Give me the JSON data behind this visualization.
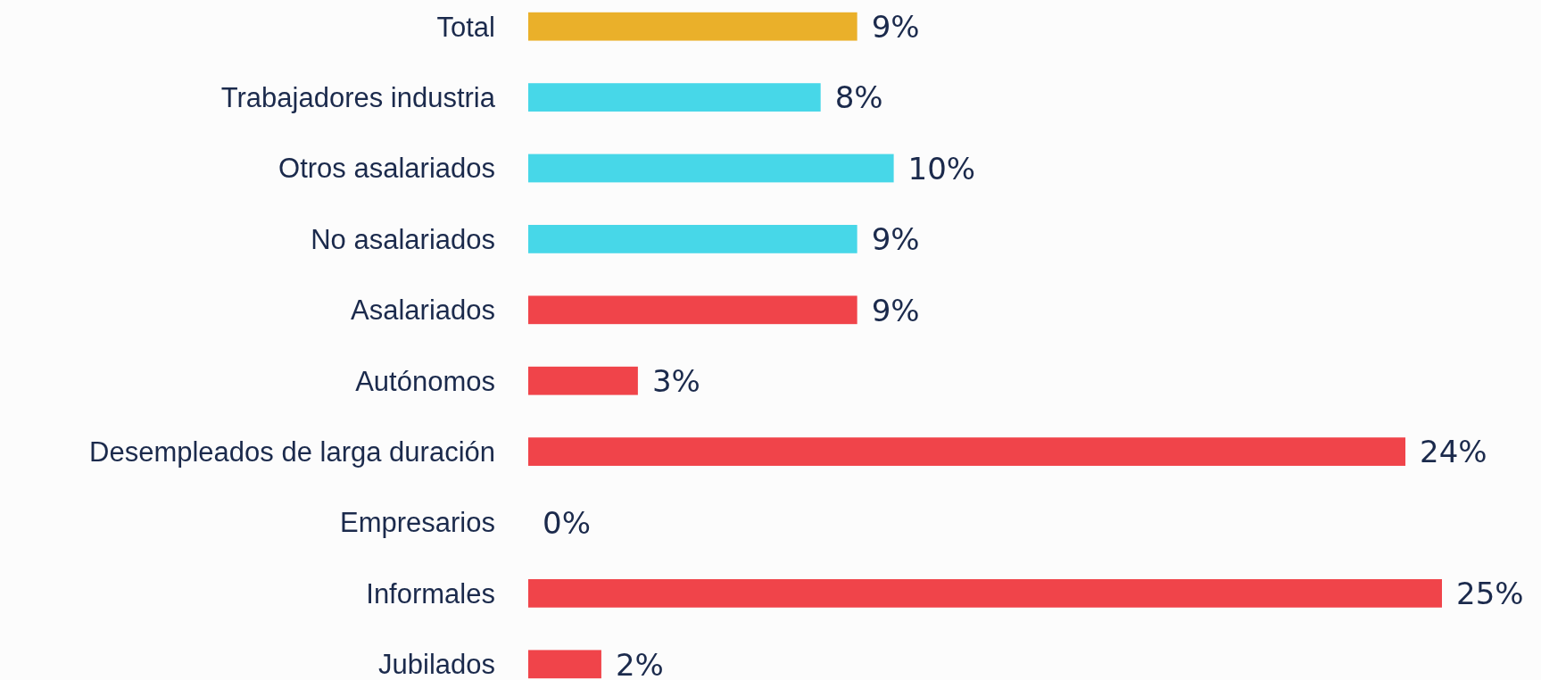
{
  "chart_data": {
    "type": "bar",
    "orientation": "horizontal",
    "categories": [
      "Total",
      "Trabajadores industria",
      "Otros asalariados",
      "No asalariados",
      "Asalariados",
      "Autónomos",
      "Desempleados de larga duración",
      "Empresarios",
      "Informales",
      "Jubilados"
    ],
    "values": [
      9,
      8,
      10,
      9,
      9,
      3,
      24,
      0,
      25,
      2
    ],
    "colors": [
      "#eab02a",
      "#47d7e8",
      "#47d7e8",
      "#47d7e8",
      "#f0444a",
      "#f0444a",
      "#f0444a",
      "#f0444a",
      "#f0444a",
      "#f0444a"
    ],
    "value_labels": [
      "9%",
      "8%",
      "10%",
      "9%",
      "9%",
      "3%",
      "24%",
      "0%",
      "25%",
      "2%"
    ]
  }
}
